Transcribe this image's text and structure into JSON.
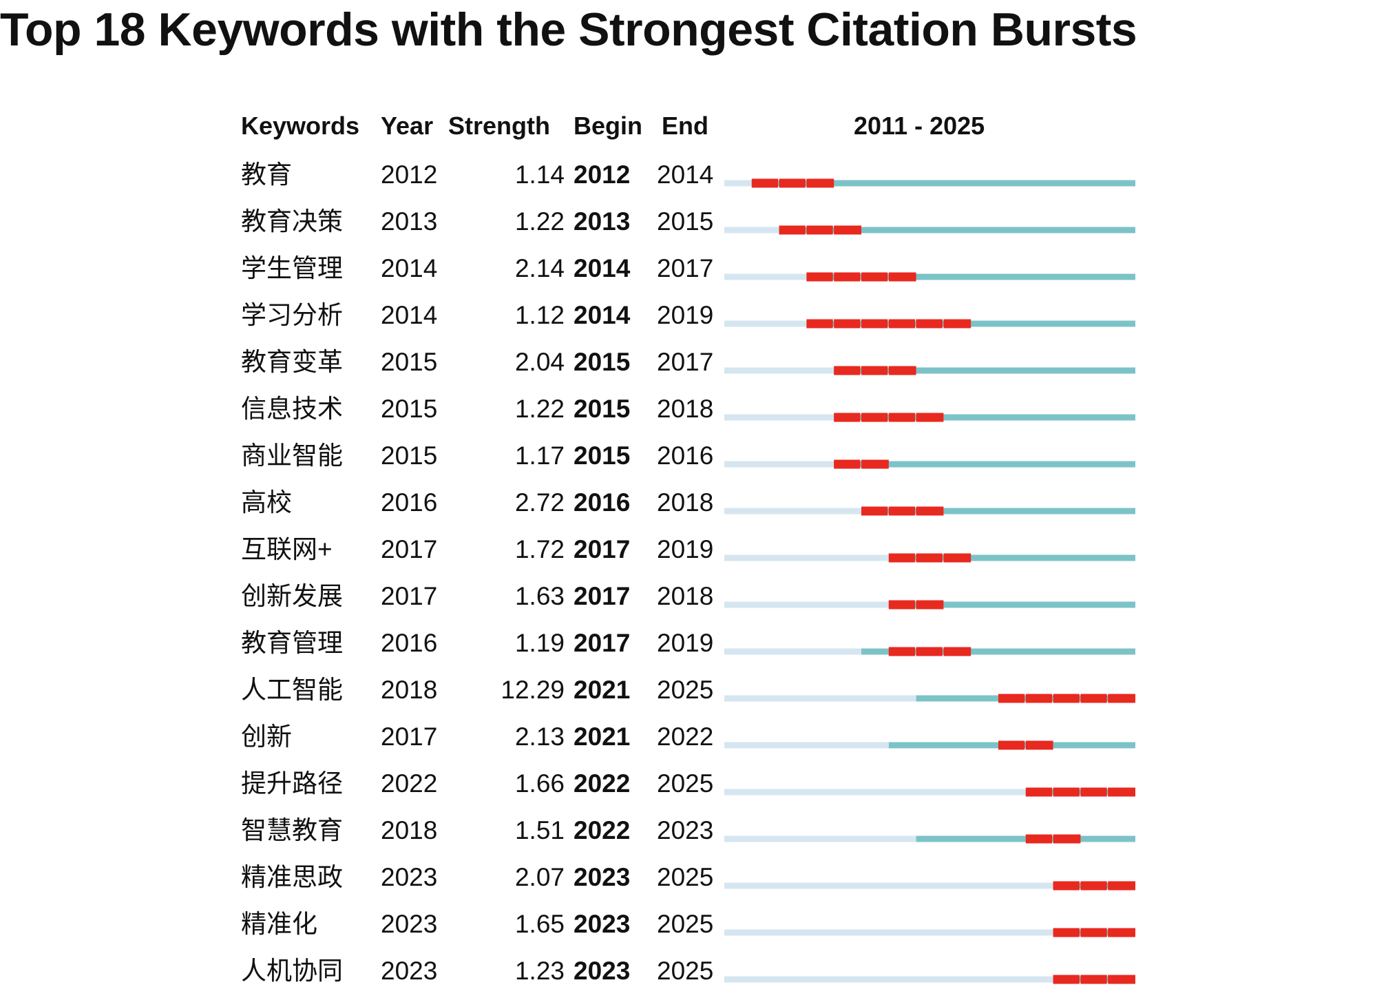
{
  "title": "Top 18 Keywords with the Strongest Citation Bursts",
  "chart_data": {
    "type": "table",
    "columns": [
      "Keywords",
      "Year",
      "Strength",
      "Begin",
      "End"
    ],
    "range_label": "2011 - 2025",
    "range": [
      2011,
      2025
    ],
    "colors": {
      "before": "#d6e6f0",
      "active": "#7cc3c8",
      "burst": "#e8291f"
    },
    "rows": [
      {
        "keyword": "教育",
        "year": "2012",
        "strength": "1.14",
        "begin": "2012",
        "end": "2014"
      },
      {
        "keyword": "教育决策",
        "year": "2013",
        "strength": "1.22",
        "begin": "2013",
        "end": "2015"
      },
      {
        "keyword": "学生管理",
        "year": "2014",
        "strength": "2.14",
        "begin": "2014",
        "end": "2017"
      },
      {
        "keyword": "学习分析",
        "year": "2014",
        "strength": "1.12",
        "begin": "2014",
        "end": "2019"
      },
      {
        "keyword": "教育变革",
        "year": "2015",
        "strength": "2.04",
        "begin": "2015",
        "end": "2017"
      },
      {
        "keyword": "信息技术",
        "year": "2015",
        "strength": "1.22",
        "begin": "2015",
        "end": "2018"
      },
      {
        "keyword": "商业智能",
        "year": "2015",
        "strength": "1.17",
        "begin": "2015",
        "end": "2016"
      },
      {
        "keyword": "高校",
        "year": "2016",
        "strength": "2.72",
        "begin": "2016",
        "end": "2018"
      },
      {
        "keyword": "互联网+",
        "year": "2017",
        "strength": "1.72",
        "begin": "2017",
        "end": "2019"
      },
      {
        "keyword": "创新发展",
        "year": "2017",
        "strength": "1.63",
        "begin": "2017",
        "end": "2018"
      },
      {
        "keyword": "教育管理",
        "year": "2016",
        "strength": "1.19",
        "begin": "2017",
        "end": "2019"
      },
      {
        "keyword": "人工智能",
        "year": "2018",
        "strength": "12.29",
        "begin": "2021",
        "end": "2025"
      },
      {
        "keyword": "创新",
        "year": "2017",
        "strength": "2.13",
        "begin": "2021",
        "end": "2022"
      },
      {
        "keyword": "提升路径",
        "year": "2022",
        "strength": "1.66",
        "begin": "2022",
        "end": "2025"
      },
      {
        "keyword": "智慧教育",
        "year": "2018",
        "strength": "1.51",
        "begin": "2022",
        "end": "2023"
      },
      {
        "keyword": "精准思政",
        "year": "2023",
        "strength": "2.07",
        "begin": "2023",
        "end": "2025"
      },
      {
        "keyword": "精准化",
        "year": "2023",
        "strength": "1.65",
        "begin": "2023",
        "end": "2025"
      },
      {
        "keyword": "人机协同",
        "year": "2023",
        "strength": "1.23",
        "begin": "2023",
        "end": "2025"
      }
    ]
  }
}
